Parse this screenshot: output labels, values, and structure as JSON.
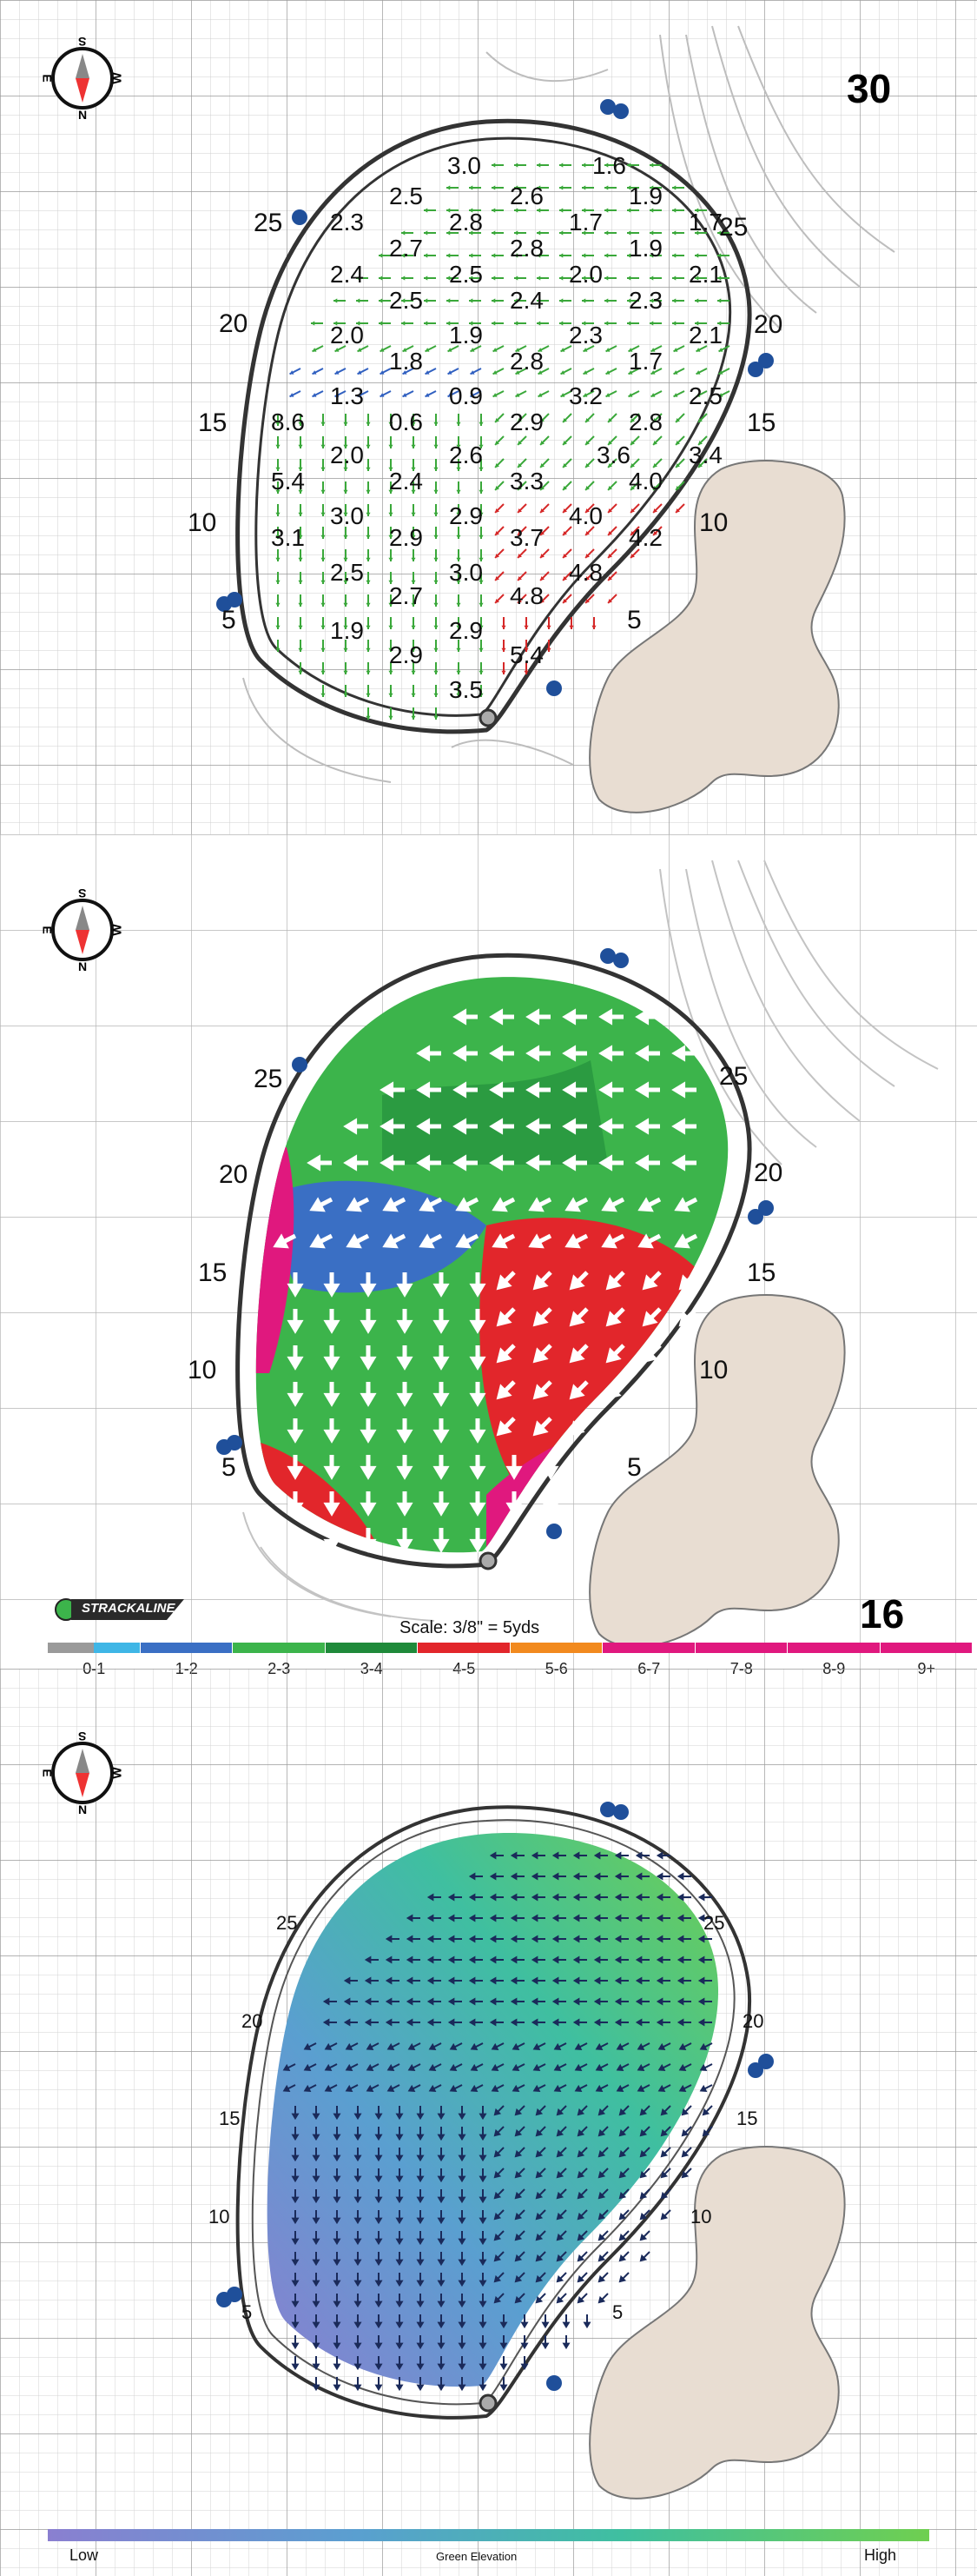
{
  "panel_top": {
    "hole_number": "30",
    "edge_labels_left": [
      "25",
      "20",
      "15",
      "10",
      "5"
    ],
    "edge_labels_right": [
      "25",
      "20",
      "15",
      "10",
      "5"
    ],
    "slope_values": [
      [
        "3.0",
        "1.6"
      ],
      [
        "2.5",
        "2.6",
        "1.9"
      ],
      [
        "2.3",
        "2.8",
        "1.7",
        "1.7"
      ],
      [
        "2.7",
        "2.8",
        "1.9"
      ],
      [
        "2.4",
        "2.5",
        "2.0",
        "2.1"
      ],
      [
        "2.5",
        "2.4",
        "2.3"
      ],
      [
        "2.0",
        "1.9",
        "2.3",
        "2.1"
      ],
      [
        "1.8",
        "2.8",
        "1.7"
      ],
      [
        "1.3",
        "0.9",
        "3.2",
        "2.5"
      ],
      [
        "8.6",
        "0.6",
        "2.9",
        "2.8"
      ],
      [
        "2.0",
        "2.6",
        "3.6",
        "3.4"
      ],
      [
        "5.4",
        "2.4",
        "3.3",
        "4.0"
      ],
      [
        "3.0",
        "2.9",
        "4.0"
      ],
      [
        "3.1",
        "2.9",
        "3.7",
        "4.2"
      ],
      [
        "2.5",
        "3.0",
        "4.8"
      ],
      [
        "2.7",
        "4.8"
      ],
      [
        "1.9",
        "2.9"
      ],
      [
        "2.9",
        "5.4"
      ],
      [
        "3.5"
      ]
    ]
  },
  "panel_middle": {
    "hole_number": "16",
    "edge_labels_left": [
      "25",
      "20",
      "15",
      "10",
      "5"
    ],
    "edge_labels_right": [
      "25",
      "20",
      "15",
      "10",
      "5"
    ],
    "brand_logo": "STRACKALINE",
    "scale_text": "Scale: 3/8\" = 5yds",
    "legend": [
      {
        "label": "0-1",
        "color": "#9a9a9a",
        "color2": "#3fb6e6"
      },
      {
        "label": "1-2",
        "color": "#3a6fc4"
      },
      {
        "label": "2-3",
        "color": "#3cb44b"
      },
      {
        "label": "3-4",
        "color": "#1f8a3a"
      },
      {
        "label": "4-5",
        "color": "#e2262b"
      },
      {
        "label": "5-6",
        "color": "#f28a1e"
      },
      {
        "label": "6-7",
        "color": "#e0187e"
      },
      {
        "label": "7-8",
        "color": "#e0187e"
      },
      {
        "label": "8-9",
        "color": "#e0187e"
      },
      {
        "label": "9+",
        "color": "#e0187e"
      }
    ]
  },
  "panel_bottom": {
    "edge_labels_left": [
      "25",
      "20",
      "15",
      "10",
      "5"
    ],
    "edge_labels_right": [
      "25",
      "20",
      "15",
      "10",
      "5"
    ],
    "elevation_low": "Low",
    "elevation_title": "Green Elevation",
    "elevation_high": "High",
    "gradient_colors": [
      "#8a7fd0",
      "#5a9fd0",
      "#3fbfa0",
      "#6fcf50"
    ]
  },
  "compass": {
    "north": "N",
    "south": "S",
    "east": "E",
    "west": "W"
  }
}
